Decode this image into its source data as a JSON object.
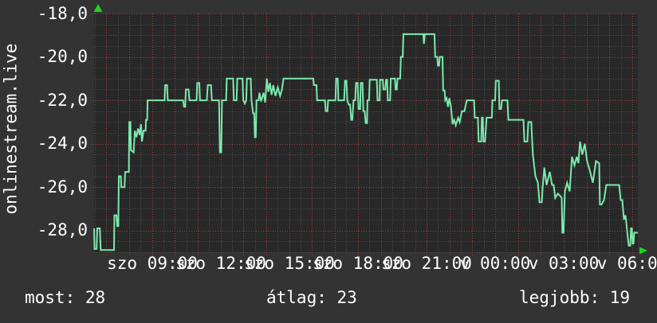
{
  "branding": {
    "watermark": "onlinestream.live"
  },
  "stats": {
    "now": "most: 28",
    "avg": "átlag: 23",
    "best": "legjobb: 19"
  },
  "chart_data": {
    "type": "line",
    "title": "",
    "xlabel": "",
    "ylabel": "",
    "grid": {
      "major": true,
      "minor": true,
      "legend_position": "none"
    },
    "ylim": [
      -29,
      -18
    ],
    "x_range_hours": [
      6.47,
      30.24
    ],
    "y_ticks": [
      {
        "v": -18,
        "label": "-18,0"
      },
      {
        "v": -20,
        "label": "-20,0"
      },
      {
        "v": -22,
        "label": "-22,0"
      },
      {
        "v": -24,
        "label": "-24,0"
      },
      {
        "v": -26,
        "label": "-26,0"
      },
      {
        "v": -28,
        "label": "-28,0"
      }
    ],
    "x_ticks": [
      {
        "h": 9,
        "label": "szo 09:00"
      },
      {
        "h": 12,
        "label": "szo 12:00"
      },
      {
        "h": 15,
        "label": "szo 15:00"
      },
      {
        "h": 18,
        "label": "szo 18:00"
      },
      {
        "h": 21,
        "label": "szo 21:00"
      },
      {
        "h": 24,
        "label": "v 00:00"
      },
      {
        "h": 27,
        "label": "v 03:00"
      },
      {
        "h": 30,
        "label": "v 06:00"
      }
    ],
    "minor_step_hours": 0.5,
    "minor_step_value": 0.5,
    "major_step_hours": 1,
    "major_step_value": 2,
    "colors": {
      "plot_bg": "#282828",
      "page_bg": "#333333",
      "minor_grid": "#505050",
      "major_grid": "#9e4444",
      "line": "#7ce9ad",
      "arrow": "#1fd31f",
      "text": "#ffffff"
    },
    "series": [
      {
        "points": [
          [
            6.47,
            -27.9
          ],
          [
            6.49,
            -28.85
          ],
          [
            6.58,
            -28.85
          ],
          [
            6.61,
            -27.9
          ],
          [
            6.72,
            -27.9
          ],
          [
            6.76,
            -28.9
          ],
          [
            7.34,
            -28.9
          ],
          [
            7.36,
            -27.3
          ],
          [
            7.45,
            -27.3
          ],
          [
            7.48,
            -27.8
          ],
          [
            7.53,
            -27.8
          ],
          [
            7.55,
            -25.5
          ],
          [
            7.64,
            -25.5
          ],
          [
            7.66,
            -26.0
          ],
          [
            7.8,
            -26.0
          ],
          [
            7.83,
            -25.3
          ],
          [
            7.99,
            -25.3
          ],
          [
            8.01,
            -23.0
          ],
          [
            8.06,
            -23.0
          ],
          [
            8.08,
            -24.3
          ],
          [
            8.2,
            -24.4
          ],
          [
            8.25,
            -23.4
          ],
          [
            8.32,
            -23.7
          ],
          [
            8.39,
            -23.3
          ],
          [
            8.46,
            -23.6
          ],
          [
            8.52,
            -23.1
          ],
          [
            8.56,
            -23.9
          ],
          [
            8.63,
            -23.4
          ],
          [
            8.72,
            -23.4
          ],
          [
            8.74,
            -22.9
          ],
          [
            8.79,
            -22.9
          ],
          [
            8.81,
            -22.0
          ],
          [
            9.55,
            -22.0
          ],
          [
            9.58,
            -21.3
          ],
          [
            9.66,
            -21.3
          ],
          [
            9.69,
            -22.0
          ],
          [
            10.36,
            -22.0
          ],
          [
            10.4,
            -22.3
          ],
          [
            10.45,
            -22.3
          ],
          [
            10.48,
            -21.5
          ],
          [
            10.6,
            -21.5
          ],
          [
            10.64,
            -22.0
          ],
          [
            10.95,
            -22.0
          ],
          [
            10.98,
            -21.2
          ],
          [
            11.07,
            -21.2
          ],
          [
            11.1,
            -22.0
          ],
          [
            11.4,
            -22.0
          ],
          [
            11.44,
            -21.3
          ],
          [
            11.58,
            -21.3
          ],
          [
            11.62,
            -22.0
          ],
          [
            11.93,
            -22.0
          ],
          [
            11.97,
            -24.4
          ],
          [
            12.03,
            -24.4
          ],
          [
            12.06,
            -22.0
          ],
          [
            12.24,
            -22.0
          ],
          [
            12.27,
            -21.0
          ],
          [
            12.55,
            -21.0
          ],
          [
            12.58,
            -22.0
          ],
          [
            12.7,
            -22.0
          ],
          [
            12.73,
            -21.0
          ],
          [
            12.96,
            -21.0
          ],
          [
            12.99,
            -22.0
          ],
          [
            13.06,
            -22.15
          ],
          [
            13.12,
            -22.0
          ],
          [
            13.15,
            -21.0
          ],
          [
            13.32,
            -21.0
          ],
          [
            13.35,
            -22.0
          ],
          [
            13.42,
            -22.6
          ],
          [
            13.47,
            -22.6
          ],
          [
            13.5,
            -23.7
          ],
          [
            13.54,
            -23.7
          ],
          [
            13.57,
            -22.0
          ],
          [
            13.66,
            -22.0
          ],
          [
            13.7,
            -21.65
          ],
          [
            13.77,
            -22.05
          ],
          [
            13.88,
            -21.65
          ],
          [
            13.95,
            -22.1
          ],
          [
            14.02,
            -21.0
          ],
          [
            14.09,
            -21.6
          ],
          [
            14.16,
            -21.2
          ],
          [
            14.23,
            -21.75
          ],
          [
            14.3,
            -21.3
          ],
          [
            14.4,
            -21.8
          ],
          [
            14.5,
            -21.4
          ],
          [
            14.6,
            -21.8
          ],
          [
            14.68,
            -21.5
          ],
          [
            14.75,
            -21.0
          ],
          [
            16.05,
            -21.0
          ],
          [
            16.08,
            -21.3
          ],
          [
            16.19,
            -21.3
          ],
          [
            16.22,
            -22.0
          ],
          [
            16.56,
            -22.0
          ],
          [
            16.6,
            -22.5
          ],
          [
            16.67,
            -22.5
          ],
          [
            16.7,
            -22.0
          ],
          [
            17.02,
            -22.0
          ],
          [
            17.05,
            -21.0
          ],
          [
            17.12,
            -21.0
          ],
          [
            17.15,
            -22.0
          ],
          [
            17.4,
            -22.0
          ],
          [
            17.44,
            -21.1
          ],
          [
            17.5,
            -21.1
          ],
          [
            17.54,
            -22.0
          ],
          [
            17.6,
            -22.2
          ],
          [
            17.66,
            -22.2
          ],
          [
            17.71,
            -22.9
          ],
          [
            17.76,
            -22.9
          ],
          [
            17.81,
            -22.0
          ],
          [
            17.88,
            -22.0
          ],
          [
            17.92,
            -21.2
          ],
          [
            17.99,
            -21.2
          ],
          [
            18.03,
            -22.4
          ],
          [
            18.1,
            -22.4
          ],
          [
            18.13,
            -21.2
          ],
          [
            18.2,
            -21.2
          ],
          [
            18.24,
            -22.5
          ],
          [
            18.3,
            -22.5
          ],
          [
            18.34,
            -23.05
          ],
          [
            18.4,
            -23.05
          ],
          [
            18.42,
            -22.0
          ],
          [
            18.49,
            -22.0
          ],
          [
            18.52,
            -21.05
          ],
          [
            18.83,
            -21.05
          ],
          [
            18.86,
            -22.0
          ],
          [
            18.95,
            -22.0
          ],
          [
            18.97,
            -21.05
          ],
          [
            19.09,
            -21.05
          ],
          [
            19.12,
            -21.5
          ],
          [
            19.2,
            -21.5
          ],
          [
            19.23,
            -21.05
          ],
          [
            19.28,
            -21.05
          ],
          [
            19.31,
            -22.0
          ],
          [
            19.41,
            -22.0
          ],
          [
            19.44,
            -21.0
          ],
          [
            19.62,
            -21.0
          ],
          [
            19.65,
            -21.5
          ],
          [
            19.7,
            -21.5
          ],
          [
            19.73,
            -21.0
          ],
          [
            19.85,
            -21.0
          ],
          [
            19.88,
            -20.0
          ],
          [
            19.96,
            -20.0
          ],
          [
            19.99,
            -18.95
          ],
          [
            20.86,
            -18.95
          ],
          [
            20.89,
            -19.4
          ],
          [
            20.93,
            -18.95
          ],
          [
            21.35,
            -18.95
          ],
          [
            21.38,
            -20.0
          ],
          [
            21.47,
            -20.0
          ],
          [
            21.5,
            -20.4
          ],
          [
            21.55,
            -20.4
          ],
          [
            21.58,
            -20.0
          ],
          [
            21.7,
            -20.0
          ],
          [
            21.73,
            -21.55
          ],
          [
            21.79,
            -21.55
          ],
          [
            21.82,
            -22.0
          ],
          [
            21.88,
            -21.9
          ],
          [
            21.94,
            -22.3
          ],
          [
            22.0,
            -21.9
          ],
          [
            22.07,
            -22.3
          ],
          [
            22.14,
            -23.1
          ],
          [
            22.21,
            -22.9
          ],
          [
            22.28,
            -23.15
          ],
          [
            22.38,
            -22.8
          ],
          [
            22.45,
            -23.0
          ],
          [
            22.55,
            -22.5
          ],
          [
            22.66,
            -22.5
          ],
          [
            22.76,
            -22.0
          ],
          [
            23.08,
            -22.0
          ],
          [
            23.11,
            -22.8
          ],
          [
            23.25,
            -22.8
          ],
          [
            23.28,
            -23.9
          ],
          [
            23.39,
            -23.9
          ],
          [
            23.42,
            -22.8
          ],
          [
            23.46,
            -22.8
          ],
          [
            23.49,
            -23.9
          ],
          [
            23.56,
            -23.9
          ],
          [
            23.63,
            -22.8
          ],
          [
            23.86,
            -22.8
          ],
          [
            23.88,
            -22.0
          ],
          [
            24.0,
            -22.0
          ],
          [
            24.03,
            -21.1
          ],
          [
            24.16,
            -21.1
          ],
          [
            24.19,
            -22.4
          ],
          [
            24.26,
            -22.4
          ],
          [
            24.3,
            -22.0
          ],
          [
            24.54,
            -22.0
          ],
          [
            24.58,
            -22.9
          ],
          [
            25.24,
            -22.9
          ],
          [
            25.28,
            -23.9
          ],
          [
            25.41,
            -23.9
          ],
          [
            25.45,
            -23.0
          ],
          [
            25.58,
            -23.0
          ],
          [
            25.65,
            -24.5
          ],
          [
            25.76,
            -25.5
          ],
          [
            25.87,
            -25.8
          ],
          [
            25.94,
            -26.7
          ],
          [
            26.04,
            -26.7
          ],
          [
            26.08,
            -26.0
          ],
          [
            26.15,
            -25.1
          ],
          [
            26.25,
            -25.9
          ],
          [
            26.39,
            -25.3
          ],
          [
            26.49,
            -25.9
          ],
          [
            26.56,
            -25.9
          ],
          [
            26.63,
            -26.5
          ],
          [
            26.74,
            -26.3
          ],
          [
            26.84,
            -26.4
          ],
          [
            26.91,
            -26.5
          ],
          [
            26.94,
            -28.1
          ],
          [
            26.99,
            -28.1
          ],
          [
            27.05,
            -26.2
          ],
          [
            27.15,
            -25.8
          ],
          [
            27.26,
            -26.2
          ],
          [
            27.36,
            -24.6
          ],
          [
            27.47,
            -25.0
          ],
          [
            27.57,
            -24.6
          ],
          [
            27.64,
            -24.9
          ],
          [
            27.71,
            -23.9
          ],
          [
            27.81,
            -24.5
          ],
          [
            27.92,
            -24.0
          ],
          [
            28.02,
            -24.8
          ],
          [
            28.13,
            -25.2
          ],
          [
            28.27,
            -25.8
          ],
          [
            28.41,
            -24.8
          ],
          [
            28.55,
            -24.9
          ],
          [
            28.58,
            -26.8
          ],
          [
            28.65,
            -26.8
          ],
          [
            28.76,
            -26.6
          ],
          [
            28.86,
            -25.9
          ],
          [
            29.42,
            -25.9
          ],
          [
            29.49,
            -26.6
          ],
          [
            29.56,
            -26.6
          ],
          [
            29.63,
            -27.5
          ],
          [
            29.7,
            -27.3
          ],
          [
            29.84,
            -28.7
          ],
          [
            29.91,
            -28.7
          ],
          [
            29.94,
            -27.9
          ],
          [
            29.98,
            -27.9
          ],
          [
            30.01,
            -28.6
          ],
          [
            30.05,
            -28.6
          ],
          [
            30.08,
            -28.1
          ],
          [
            30.24,
            -28.1
          ]
        ]
      }
    ]
  }
}
